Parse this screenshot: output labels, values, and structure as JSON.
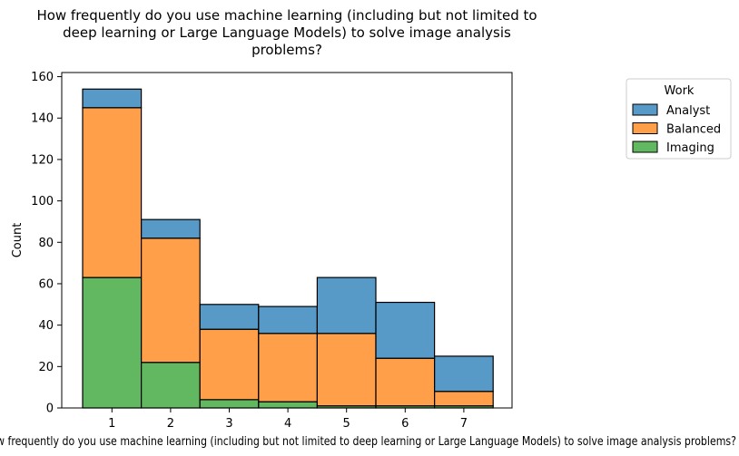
{
  "chart_data": {
    "type": "bar",
    "stacked": true,
    "title_lines": [
      "How frequently do you use machine learning (including but not limited to",
      "deep learning or Large Language Models) to solve image analysis",
      "problems?"
    ],
    "xlabel": "How frequently do you use machine learning (including but not limited to deep learning or Large Language Models) to solve image analysis problems?",
    "ylabel": "Count",
    "categories": [
      "1",
      "2",
      "3",
      "4",
      "5",
      "6",
      "7"
    ],
    "ylim": [
      0,
      162
    ],
    "yticks": [
      0,
      20,
      40,
      60,
      80,
      100,
      120,
      140,
      160
    ],
    "grid": false,
    "legend": {
      "title": "Work",
      "placement": "outside-right-top"
    },
    "series": [
      {
        "name": "Imaging",
        "color": "#2ca02c",
        "values": [
          63,
          22,
          4,
          3,
          1,
          1,
          1
        ]
      },
      {
        "name": "Balanced",
        "color": "#ff7f0e",
        "values": [
          82,
          60,
          34,
          33,
          35,
          23,
          7
        ]
      },
      {
        "name": "Analyst",
        "color": "#1f77b4",
        "values": [
          9,
          9,
          12,
          13,
          27,
          27,
          17
        ]
      }
    ],
    "legend_order": [
      "Analyst",
      "Balanced",
      "Imaging"
    ]
  }
}
